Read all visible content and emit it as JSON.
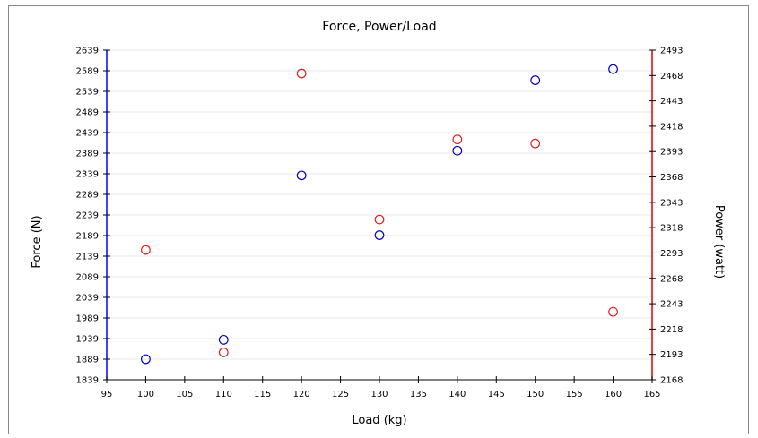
{
  "chart_data": {
    "type": "scatter",
    "title": "Force, Power/Load",
    "xlabel": "Load (kg)",
    "ylabel_left": "Force (N)",
    "ylabel_right": "Power (watt)",
    "xlim": [
      95,
      165
    ],
    "ylim_left": [
      1839,
      2639
    ],
    "ylim_right": [
      2168,
      2493
    ],
    "x_ticks": [
      "95",
      "100",
      "105",
      "110",
      "115",
      "120",
      "125",
      "130",
      "135",
      "140",
      "145",
      "150",
      "155",
      "160",
      "165"
    ],
    "y_left_ticks": [
      "1839",
      "1889",
      "1939",
      "1989",
      "2039",
      "2089",
      "2139",
      "2189",
      "2239",
      "2289",
      "2339",
      "2389",
      "2439",
      "2489",
      "2539",
      "2589",
      "2639"
    ],
    "y_right_ticks": [
      "2168",
      "2193",
      "2218",
      "2243",
      "2268",
      "2293",
      "2318",
      "2343",
      "2368",
      "2393",
      "2418",
      "2443",
      "2468",
      "2493"
    ],
    "grid": true,
    "colors": {
      "left_axis": "#0000ff",
      "right_axis": "#e00000",
      "grid": "#e8e8e8"
    },
    "series": [
      {
        "axis": "left",
        "color": "#0000cc",
        "x": [
          100,
          110,
          120,
          130,
          140,
          150,
          160
        ],
        "y": [
          1889,
          1936,
          2335,
          2190,
          2395,
          2566,
          2593
        ]
      },
      {
        "axis": "right",
        "color": "#e02020",
        "x": [
          100,
          110,
          120,
          130,
          140,
          150,
          160
        ],
        "y": [
          2296,
          2195,
          2470,
          2326,
          2405,
          2401,
          2235
        ]
      }
    ]
  }
}
